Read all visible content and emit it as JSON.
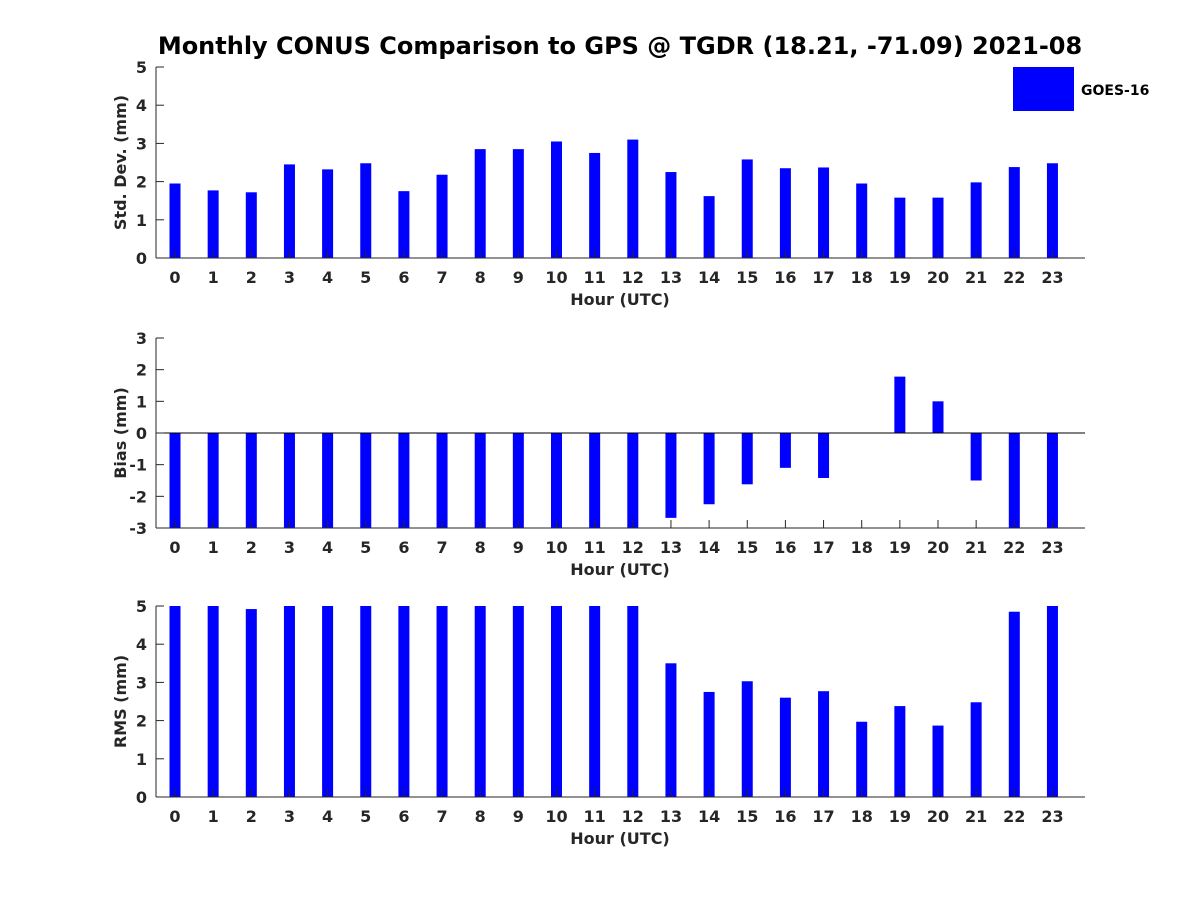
{
  "title": "Monthly CONUS Comparison to GPS @ TGDR (18.21, -71.09) 2021-08",
  "legend": {
    "label": "GOES-16",
    "color": "#0000ff"
  },
  "bar_color": "#0000ff",
  "chart_data": [
    {
      "type": "bar",
      "ylabel": "Std. Dev. (mm)",
      "xlabel": "Hour (UTC)",
      "ylim": [
        0,
        5
      ],
      "yticks": [
        0,
        1,
        2,
        3,
        4,
        5
      ],
      "categories": [
        "0",
        "1",
        "2",
        "3",
        "4",
        "5",
        "6",
        "7",
        "8",
        "9",
        "10",
        "11",
        "12",
        "13",
        "14",
        "15",
        "16",
        "17",
        "18",
        "19",
        "20",
        "21",
        "22",
        "23"
      ],
      "series": [
        {
          "name": "GOES-16",
          "values": [
            1.95,
            1.77,
            1.72,
            2.45,
            2.32,
            2.48,
            1.75,
            2.18,
            2.85,
            2.85,
            3.05,
            2.75,
            3.1,
            2.25,
            1.62,
            2.58,
            2.35,
            2.37,
            1.95,
            1.58,
            1.58,
            1.98,
            2.38,
            2.48
          ]
        }
      ],
      "grid": false
    },
    {
      "type": "bar",
      "ylabel": "Bias (mm)",
      "xlabel": "Hour (UTC)",
      "ylim": [
        -3,
        3
      ],
      "yticks": [
        -3,
        -2,
        -1,
        0,
        1,
        2,
        3
      ],
      "categories": [
        "0",
        "1",
        "2",
        "3",
        "4",
        "5",
        "6",
        "7",
        "8",
        "9",
        "10",
        "11",
        "12",
        "13",
        "14",
        "15",
        "16",
        "17",
        "18",
        "19",
        "20",
        "21",
        "22",
        "23"
      ],
      "series": [
        {
          "name": "GOES-16",
          "values": [
            -3,
            -3,
            -3,
            -3,
            -3,
            -3,
            -3,
            -3,
            -3,
            -3,
            -3,
            -3,
            -3,
            -2.68,
            -2.25,
            -1.62,
            -1.1,
            -1.42,
            0,
            1.78,
            1.0,
            -1.5,
            -3,
            -3
          ]
        }
      ],
      "grid": false
    },
    {
      "type": "bar",
      "ylabel": "RMS (mm)",
      "xlabel": "Hour (UTC)",
      "ylim": [
        0,
        5
      ],
      "yticks": [
        0,
        1,
        2,
        3,
        4,
        5
      ],
      "categories": [
        "0",
        "1",
        "2",
        "3",
        "4",
        "5",
        "6",
        "7",
        "8",
        "9",
        "10",
        "11",
        "12",
        "13",
        "14",
        "15",
        "16",
        "17",
        "18",
        "19",
        "20",
        "21",
        "22",
        "23"
      ],
      "series": [
        {
          "name": "GOES-16",
          "values": [
            5,
            5,
            4.92,
            5,
            5,
            5,
            5,
            5,
            5,
            5,
            5,
            5,
            5,
            3.5,
            2.75,
            3.03,
            2.6,
            2.77,
            1.97,
            2.38,
            1.87,
            2.48,
            4.85,
            5
          ]
        }
      ],
      "grid": false
    }
  ]
}
